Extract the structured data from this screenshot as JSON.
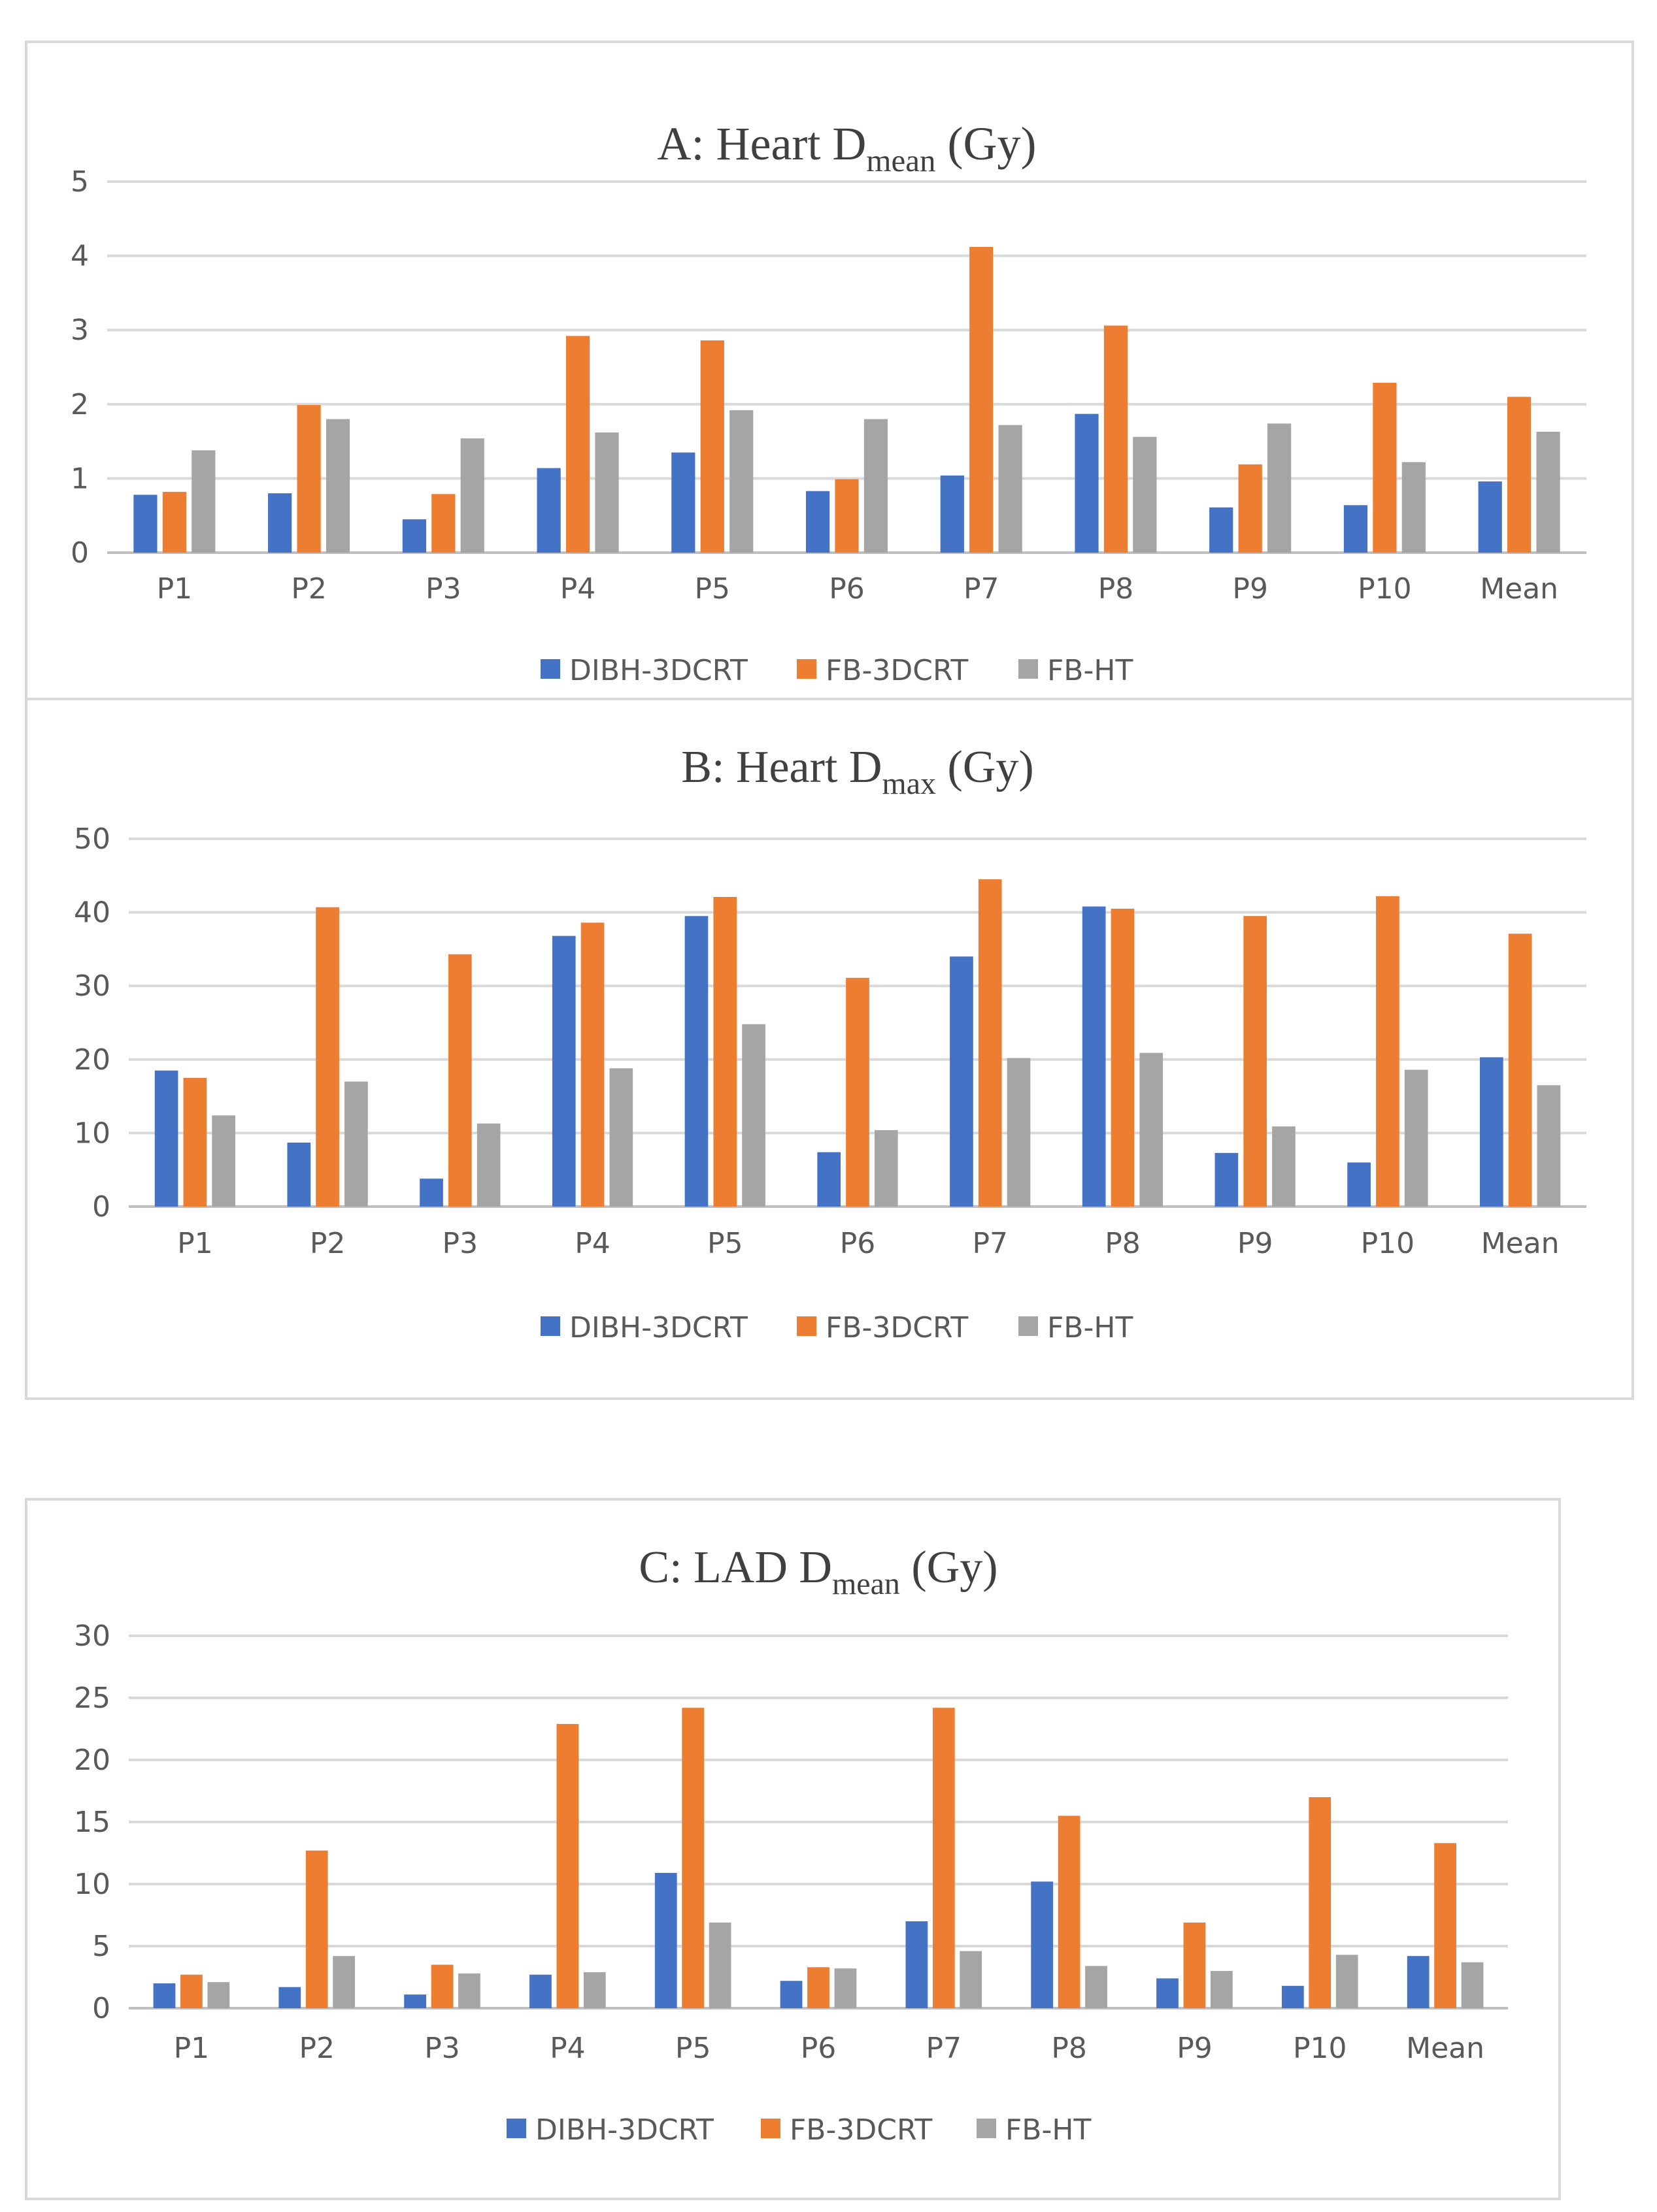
{
  "colors": {
    "DIBH-3DCRT": "#4472c4",
    "FB-3DCRT": "#ed7d31",
    "FB-HT": "#a5a5a5"
  },
  "chart_data": [
    {
      "type": "bar",
      "title_main": "A: Heart D",
      "title_sub": "mean",
      "title_unit": " (Gy)",
      "categories": [
        "P1",
        "P2",
        "P3",
        "P4",
        "P5",
        "P6",
        "P7",
        "P8",
        "P9",
        "P10",
        "Mean"
      ],
      "ylim": [
        0,
        5
      ],
      "yticks": [
        "0",
        "1",
        "2",
        "3",
        "4",
        "5"
      ],
      "ytick_values": [
        0,
        1,
        2,
        3,
        4,
        5
      ],
      "legend": "bottom",
      "series": [
        {
          "name": "DIBH-3DCRT",
          "values": [
            0.78,
            0.8,
            0.45,
            1.14,
            1.35,
            0.83,
            1.04,
            1.87,
            0.61,
            0.64,
            0.96
          ]
        },
        {
          "name": "FB-3DCRT",
          "values": [
            0.82,
            1.99,
            0.79,
            2.92,
            2.86,
            0.99,
            4.12,
            3.06,
            1.19,
            2.29,
            2.1
          ]
        },
        {
          "name": "FB-HT",
          "values": [
            1.38,
            1.8,
            1.54,
            1.62,
            1.92,
            1.8,
            1.72,
            1.56,
            1.74,
            1.22,
            1.63
          ]
        }
      ]
    },
    {
      "type": "bar",
      "title_main": "B: Heart D",
      "title_sub": "max",
      "title_unit": " (Gy)",
      "categories": [
        "P1",
        "P2",
        "P3",
        "P4",
        "P5",
        "P6",
        "P7",
        "P8",
        "P9",
        "P10",
        "Mean"
      ],
      "ylim": [
        0,
        50
      ],
      "yticks": [
        "0",
        "10",
        "20",
        "30",
        "40",
        "50"
      ],
      "ytick_values": [
        0,
        10,
        20,
        30,
        40,
        50
      ],
      "legend": "bottom",
      "series": [
        {
          "name": "DIBH-3DCRT",
          "values": [
            18.5,
            8.7,
            3.8,
            36.8,
            39.5,
            7.4,
            34,
            40.8,
            7.3,
            6,
            20.3
          ]
        },
        {
          "name": "FB-3DCRT",
          "values": [
            17.5,
            40.7,
            34.3,
            38.6,
            42.1,
            31.1,
            44.5,
            40.5,
            39.5,
            42.2,
            37.1
          ]
        },
        {
          "name": "FB-HT",
          "values": [
            12.4,
            17,
            11.3,
            18.8,
            24.8,
            10.4,
            20.2,
            20.9,
            10.9,
            18.6,
            16.5
          ]
        }
      ]
    },
    {
      "type": "bar",
      "title_main": "C: LAD D",
      "title_sub": "mean",
      "title_unit": " (Gy)",
      "categories": [
        "P1",
        "P2",
        "P3",
        "P4",
        "P5",
        "P6",
        "P7",
        "P8",
        "P9",
        "P10",
        "Mean"
      ],
      "ylim": [
        0,
        30
      ],
      "yticks": [
        "0",
        "5",
        "10",
        "15",
        "20",
        "25",
        "30"
      ],
      "ytick_values": [
        0,
        5,
        10,
        15,
        20,
        25,
        30
      ],
      "legend": "bottom",
      "series": [
        {
          "name": "DIBH-3DCRT",
          "values": [
            2,
            1.7,
            1.1,
            2.7,
            10.9,
            2.2,
            7,
            10.2,
            2.4,
            1.8,
            4.2
          ]
        },
        {
          "name": "FB-3DCRT",
          "values": [
            2.7,
            12.7,
            3.5,
            22.9,
            24.2,
            3.3,
            24.2,
            15.5,
            6.9,
            17,
            13.3
          ]
        },
        {
          "name": "FB-HT",
          "values": [
            2.1,
            4.2,
            2.8,
            2.9,
            6.9,
            3.2,
            4.6,
            3.4,
            3,
            4.3,
            3.7
          ]
        }
      ]
    }
  ]
}
